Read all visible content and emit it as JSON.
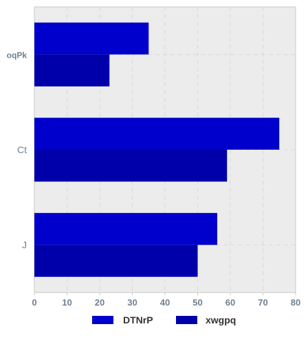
{
  "chart_data": {
    "type": "bar",
    "orientation": "horizontal",
    "categories": [
      "oqPk",
      "Ct",
      "J"
    ],
    "series": [
      {
        "name": "DTNrP",
        "values": [
          35,
          75,
          56
        ],
        "color": "#0000cc"
      },
      {
        "name": "xwgpq",
        "values": [
          23,
          59,
          50
        ],
        "color": "#0000aa"
      }
    ],
    "xlim": [
      0,
      80
    ],
    "x_ticks": [
      0,
      10,
      20,
      30,
      40,
      50,
      60,
      70,
      80
    ],
    "grid": true,
    "legend_position": "bottom",
    "colors": {
      "plot_background": "#ececec",
      "plot_border": "#c8c8c8",
      "grid": "#d8d8d8",
      "tick_text": "#708090",
      "category_text": "#708090",
      "legend_text": "#333333"
    }
  }
}
